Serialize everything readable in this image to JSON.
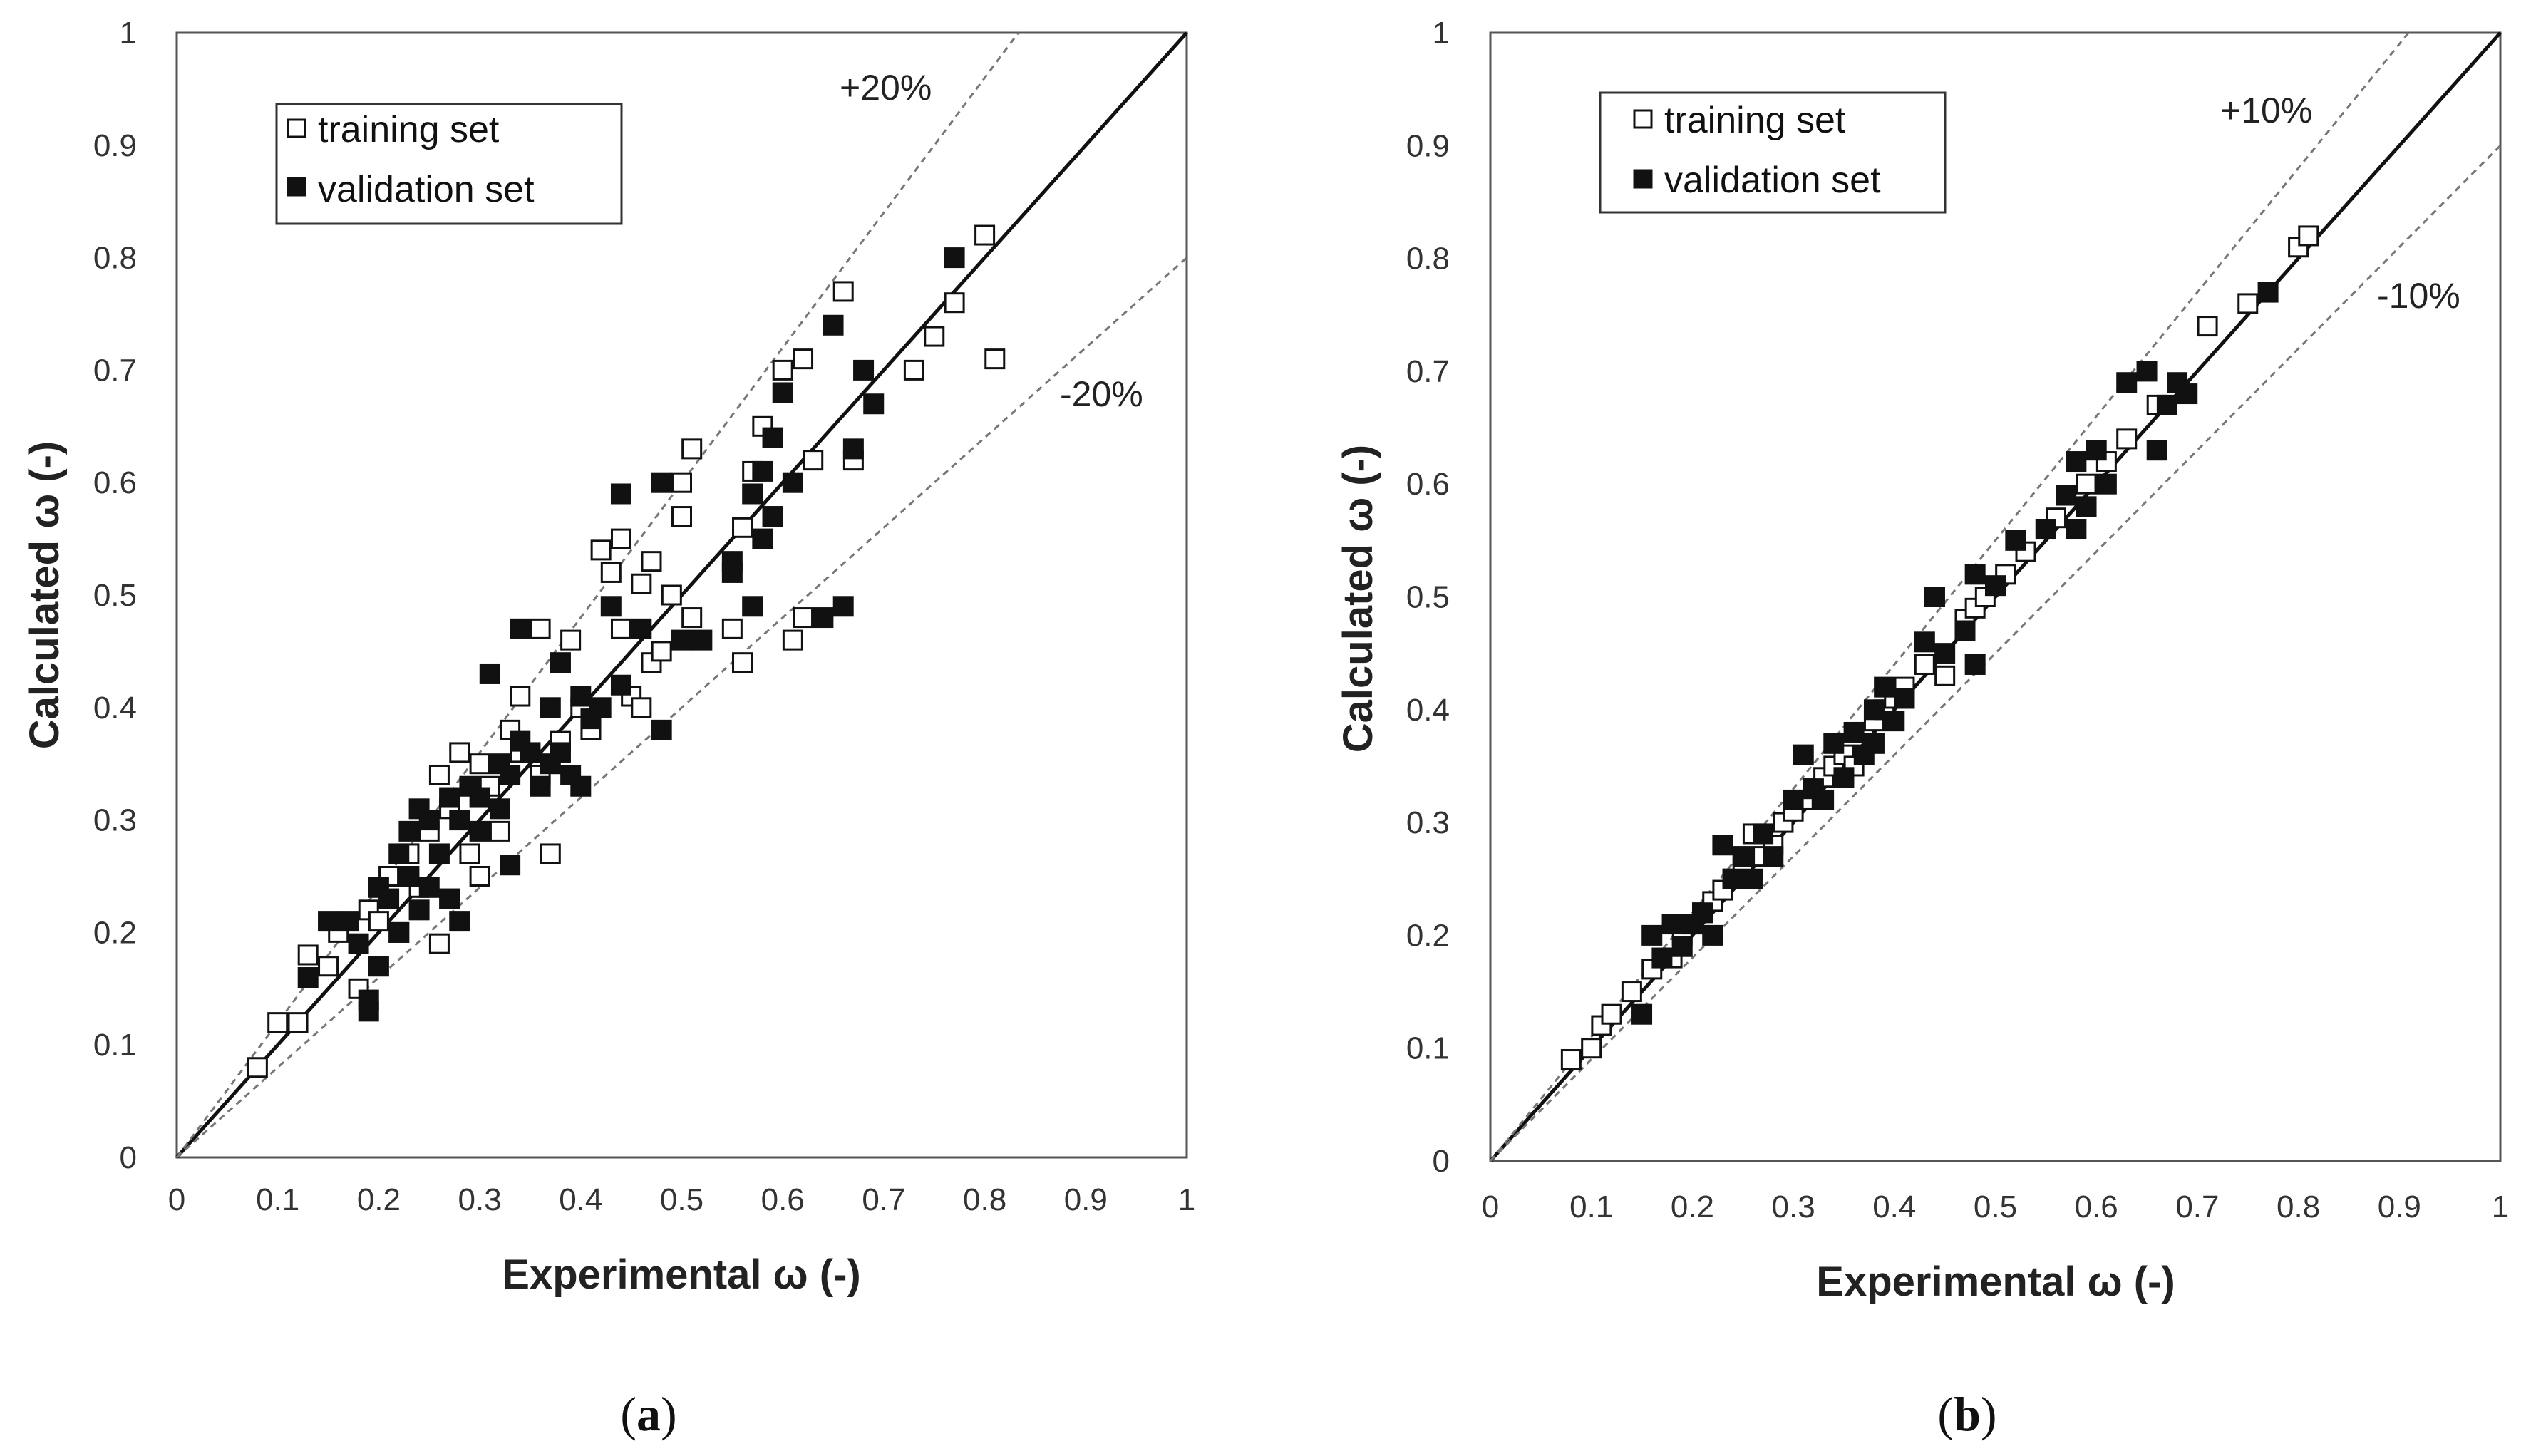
{
  "chart_data": [
    {
      "type": "scatter",
      "panel": "a",
      "xlabel": "Experimental ω (-)",
      "ylabel": "Calculated ω (-)",
      "xlim": [
        0,
        1
      ],
      "ylim": [
        0,
        1
      ],
      "xticks": [
        "0",
        "0.1",
        "0.2",
        "0.3",
        "0.4",
        "0.5",
        "0.6",
        "0.7",
        "0.8",
        "0.9",
        "1"
      ],
      "yticks": [
        "0",
        "0.1",
        "0.2",
        "0.3",
        "0.4",
        "0.5",
        "0.6",
        "0.7",
        "0.8",
        "0.9",
        "1"
      ],
      "grid": false,
      "legend_position": "top-left",
      "reference_lines": [
        {
          "label": "",
          "slope": 1.0,
          "style": "solid"
        },
        {
          "label": "+20%",
          "slope": 1.2,
          "style": "dashed"
        },
        {
          "label": "-20%",
          "slope": 0.8,
          "style": "dashed"
        }
      ],
      "series": [
        {
          "name": "training set",
          "marker": "open-square",
          "points": [
            [
              0.08,
              0.08
            ],
            [
              0.1,
              0.12
            ],
            [
              0.12,
              0.12
            ],
            [
              0.13,
              0.18
            ],
            [
              0.15,
              0.17
            ],
            [
              0.16,
              0.2
            ],
            [
              0.18,
              0.15
            ],
            [
              0.19,
              0.22
            ],
            [
              0.2,
              0.21
            ],
            [
              0.21,
              0.25
            ],
            [
              0.22,
              0.2
            ],
            [
              0.23,
              0.27
            ],
            [
              0.24,
              0.24
            ],
            [
              0.25,
              0.29
            ],
            [
              0.26,
              0.19
            ],
            [
              0.26,
              0.34
            ],
            [
              0.27,
              0.31
            ],
            [
              0.28,
              0.36
            ],
            [
              0.29,
              0.27
            ],
            [
              0.3,
              0.25
            ],
            [
              0.3,
              0.35
            ],
            [
              0.31,
              0.33
            ],
            [
              0.32,
              0.29
            ],
            [
              0.33,
              0.38
            ],
            [
              0.34,
              0.36
            ],
            [
              0.34,
              0.41
            ],
            [
              0.36,
              0.47
            ],
            [
              0.36,
              0.34
            ],
            [
              0.37,
              0.27
            ],
            [
              0.38,
              0.37
            ],
            [
              0.39,
              0.46
            ],
            [
              0.4,
              0.4
            ],
            [
              0.41,
              0.38
            ],
            [
              0.42,
              0.54
            ],
            [
              0.43,
              0.52
            ],
            [
              0.44,
              0.55
            ],
            [
              0.44,
              0.47
            ],
            [
              0.45,
              0.41
            ],
            [
              0.46,
              0.4
            ],
            [
              0.46,
              0.51
            ],
            [
              0.47,
              0.53
            ],
            [
              0.47,
              0.44
            ],
            [
              0.48,
              0.45
            ],
            [
              0.49,
              0.5
            ],
            [
              0.5,
              0.57
            ],
            [
              0.5,
              0.6
            ],
            [
              0.51,
              0.63
            ],
            [
              0.51,
              0.48
            ],
            [
              0.55,
              0.47
            ],
            [
              0.56,
              0.56
            ],
            [
              0.56,
              0.44
            ],
            [
              0.57,
              0.61
            ],
            [
              0.58,
              0.65
            ],
            [
              0.6,
              0.7
            ],
            [
              0.61,
              0.46
            ],
            [
              0.62,
              0.48
            ],
            [
              0.62,
              0.71
            ],
            [
              0.63,
              0.62
            ],
            [
              0.66,
              0.77
            ],
            [
              0.67,
              0.62
            ],
            [
              0.73,
              0.7
            ],
            [
              0.75,
              0.73
            ],
            [
              0.77,
              0.76
            ],
            [
              0.8,
              0.82
            ],
            [
              0.81,
              0.71
            ]
          ]
        },
        {
          "name": "validation set",
          "marker": "filled-square",
          "points": [
            [
              0.13,
              0.16
            ],
            [
              0.15,
              0.21
            ],
            [
              0.17,
              0.21
            ],
            [
              0.18,
              0.19
            ],
            [
              0.19,
              0.13
            ],
            [
              0.19,
              0.14
            ],
            [
              0.2,
              0.17
            ],
            [
              0.2,
              0.24
            ],
            [
              0.21,
              0.23
            ],
            [
              0.22,
              0.2
            ],
            [
              0.22,
              0.27
            ],
            [
              0.23,
              0.25
            ],
            [
              0.23,
              0.29
            ],
            [
              0.24,
              0.22
            ],
            [
              0.24,
              0.31
            ],
            [
              0.25,
              0.3
            ],
            [
              0.25,
              0.24
            ],
            [
              0.26,
              0.27
            ],
            [
              0.27,
              0.23
            ],
            [
              0.27,
              0.32
            ],
            [
              0.28,
              0.21
            ],
            [
              0.28,
              0.3
            ],
            [
              0.29,
              0.33
            ],
            [
              0.3,
              0.29
            ],
            [
              0.3,
              0.32
            ],
            [
              0.31,
              0.43
            ],
            [
              0.32,
              0.31
            ],
            [
              0.32,
              0.35
            ],
            [
              0.33,
              0.26
            ],
            [
              0.33,
              0.34
            ],
            [
              0.34,
              0.37
            ],
            [
              0.34,
              0.47
            ],
            [
              0.35,
              0.36
            ],
            [
              0.36,
              0.33
            ],
            [
              0.37,
              0.4
            ],
            [
              0.37,
              0.35
            ],
            [
              0.38,
              0.44
            ],
            [
              0.38,
              0.36
            ],
            [
              0.39,
              0.34
            ],
            [
              0.4,
              0.33
            ],
            [
              0.4,
              0.41
            ],
            [
              0.41,
              0.39
            ],
            [
              0.42,
              0.4
            ],
            [
              0.43,
              0.49
            ],
            [
              0.44,
              0.42
            ],
            [
              0.44,
              0.59
            ],
            [
              0.46,
              0.47
            ],
            [
              0.48,
              0.38
            ],
            [
              0.48,
              0.6
            ],
            [
              0.5,
              0.46
            ],
            [
              0.52,
              0.46
            ],
            [
              0.55,
              0.53
            ],
            [
              0.55,
              0.52
            ],
            [
              0.57,
              0.59
            ],
            [
              0.57,
              0.49
            ],
            [
              0.58,
              0.61
            ],
            [
              0.58,
              0.55
            ],
            [
              0.59,
              0.57
            ],
            [
              0.59,
              0.64
            ],
            [
              0.6,
              0.68
            ],
            [
              0.61,
              0.6
            ],
            [
              0.64,
              0.48
            ],
            [
              0.65,
              0.74
            ],
            [
              0.66,
              0.49
            ],
            [
              0.67,
              0.63
            ],
            [
              0.68,
              0.7
            ],
            [
              0.69,
              0.67
            ],
            [
              0.77,
              0.8
            ]
          ]
        }
      ]
    },
    {
      "type": "scatter",
      "panel": "b",
      "xlabel": "Experimental ω (-)",
      "ylabel": "Calculated ω (-)",
      "xlim": [
        0,
        1
      ],
      "ylim": [
        0,
        1
      ],
      "xticks": [
        "0",
        "0.1",
        "0.2",
        "0.3",
        "0.4",
        "0.5",
        "0.6",
        "0.7",
        "0.8",
        "0.9",
        "1"
      ],
      "yticks": [
        "0",
        "0.1",
        "0.2",
        "0.3",
        "0.4",
        "0.5",
        "0.6",
        "0.7",
        "0.8",
        "0.9",
        "1"
      ],
      "grid": false,
      "legend_position": "top-left",
      "reference_lines": [
        {
          "label": "",
          "slope": 1.0,
          "style": "solid"
        },
        {
          "label": "+10%",
          "slope": 1.1,
          "style": "dashed"
        },
        {
          "label": "-10%",
          "slope": 0.9,
          "style": "dashed"
        }
      ],
      "series": [
        {
          "name": "training set",
          "marker": "open-square",
          "points": [
            [
              0.08,
              0.09
            ],
            [
              0.1,
              0.1
            ],
            [
              0.11,
              0.12
            ],
            [
              0.12,
              0.13
            ],
            [
              0.14,
              0.15
            ],
            [
              0.16,
              0.17
            ],
            [
              0.18,
              0.18
            ],
            [
              0.19,
              0.2
            ],
            [
              0.2,
              0.21
            ],
            [
              0.21,
              0.22
            ],
            [
              0.22,
              0.23
            ],
            [
              0.23,
              0.24
            ],
            [
              0.24,
              0.25
            ],
            [
              0.25,
              0.26
            ],
            [
              0.26,
              0.29
            ],
            [
              0.27,
              0.27
            ],
            [
              0.28,
              0.28
            ],
            [
              0.29,
              0.3
            ],
            [
              0.3,
              0.31
            ],
            [
              0.31,
              0.32
            ],
            [
              0.32,
              0.33
            ],
            [
              0.33,
              0.34
            ],
            [
              0.34,
              0.35
            ],
            [
              0.35,
              0.36
            ],
            [
              0.36,
              0.35
            ],
            [
              0.37,
              0.38
            ],
            [
              0.38,
              0.39
            ],
            [
              0.39,
              0.4
            ],
            [
              0.4,
              0.41
            ],
            [
              0.41,
              0.42
            ],
            [
              0.43,
              0.44
            ],
            [
              0.45,
              0.43
            ],
            [
              0.47,
              0.48
            ],
            [
              0.48,
              0.49
            ],
            [
              0.49,
              0.5
            ],
            [
              0.51,
              0.52
            ],
            [
              0.53,
              0.54
            ],
            [
              0.55,
              0.56
            ],
            [
              0.56,
              0.57
            ],
            [
              0.59,
              0.6
            ],
            [
              0.61,
              0.62
            ],
            [
              0.63,
              0.64
            ],
            [
              0.66,
              0.67
            ],
            [
              0.71,
              0.74
            ],
            [
              0.75,
              0.76
            ],
            [
              0.8,
              0.81
            ],
            [
              0.81,
              0.82
            ]
          ]
        },
        {
          "name": "validation set",
          "marker": "filled-square",
          "points": [
            [
              0.15,
              0.13
            ],
            [
              0.16,
              0.2
            ],
            [
              0.17,
              0.18
            ],
            [
              0.18,
              0.21
            ],
            [
              0.19,
              0.19
            ],
            [
              0.2,
              0.21
            ],
            [
              0.21,
              0.22
            ],
            [
              0.22,
              0.2
            ],
            [
              0.23,
              0.28
            ],
            [
              0.24,
              0.25
            ],
            [
              0.25,
              0.27
            ],
            [
              0.26,
              0.25
            ],
            [
              0.27,
              0.29
            ],
            [
              0.28,
              0.27
            ],
            [
              0.3,
              0.32
            ],
            [
              0.31,
              0.36
            ],
            [
              0.32,
              0.33
            ],
            [
              0.33,
              0.32
            ],
            [
              0.34,
              0.37
            ],
            [
              0.35,
              0.34
            ],
            [
              0.36,
              0.38
            ],
            [
              0.37,
              0.36
            ],
            [
              0.38,
              0.4
            ],
            [
              0.38,
              0.37
            ],
            [
              0.39,
              0.42
            ],
            [
              0.4,
              0.39
            ],
            [
              0.41,
              0.41
            ],
            [
              0.43,
              0.46
            ],
            [
              0.44,
              0.5
            ],
            [
              0.45,
              0.45
            ],
            [
              0.47,
              0.47
            ],
            [
              0.48,
              0.44
            ],
            [
              0.48,
              0.52
            ],
            [
              0.5,
              0.51
            ],
            [
              0.52,
              0.55
            ],
            [
              0.55,
              0.56
            ],
            [
              0.57,
              0.59
            ],
            [
              0.58,
              0.56
            ],
            [
              0.58,
              0.62
            ],
            [
              0.59,
              0.58
            ],
            [
              0.6,
              0.63
            ],
            [
              0.61,
              0.6
            ],
            [
              0.63,
              0.69
            ],
            [
              0.65,
              0.7
            ],
            [
              0.66,
              0.63
            ],
            [
              0.67,
              0.67
            ],
            [
              0.68,
              0.69
            ],
            [
              0.69,
              0.68
            ],
            [
              0.77,
              0.77
            ]
          ]
        }
      ]
    }
  ],
  "panel_labels": [
    {
      "open": "(",
      "letter": "a",
      "close": ")"
    },
    {
      "open": "(",
      "letter": "b",
      "close": ")"
    }
  ]
}
